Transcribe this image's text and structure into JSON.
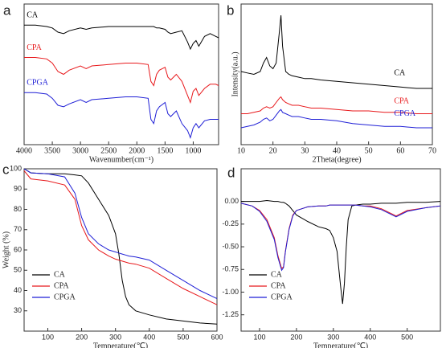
{
  "chart_data": [
    {
      "type": "line",
      "panel": "a",
      "xlabel": "Wavenumber(cm⁻¹)",
      "legend": "inline",
      "xlim": [
        4000,
        550
      ],
      "xticks": [
        4000,
        3500,
        3000,
        2500,
        2000,
        1500,
        1000
      ],
      "ylim": [
        0,
        100
      ],
      "x": [
        4000,
        3800,
        3600,
        3500,
        3400,
        3300,
        3200,
        3000,
        2900,
        2800,
        2500,
        2200,
        2000,
        1800,
        1750,
        1700,
        1650,
        1600,
        1500,
        1450,
        1400,
        1300,
        1200,
        1100,
        1050,
        1000,
        950,
        900,
        800,
        700,
        600,
        550
      ],
      "series": [
        {
          "name": "CA",
          "color": "#000000",
          "values": [
            85,
            85,
            84,
            83,
            80,
            79,
            81,
            83,
            82,
            83,
            84,
            84,
            84,
            84,
            84,
            84,
            83,
            83,
            82,
            80,
            79,
            80,
            81,
            73,
            68,
            72,
            74,
            70,
            77,
            79,
            77,
            76
          ]
        },
        {
          "name": "CPA",
          "color": "#e8191c",
          "values": [
            62,
            62,
            61,
            58,
            52,
            50,
            53,
            56,
            54,
            56,
            57,
            58,
            58,
            57,
            45,
            42,
            50,
            53,
            55,
            48,
            46,
            50,
            45,
            35,
            30,
            38,
            40,
            35,
            40,
            43,
            43,
            42
          ]
        },
        {
          "name": "CPGA",
          "color": "#1f1fd6",
          "values": [
            37,
            37,
            36,
            33,
            28,
            27,
            29,
            32,
            30,
            32,
            33,
            34,
            34,
            33,
            18,
            15,
            24,
            27,
            30,
            22,
            20,
            24,
            15,
            10,
            5,
            12,
            15,
            12,
            17,
            18,
            18,
            18
          ]
        }
      ]
    },
    {
      "type": "line",
      "panel": "b",
      "xlabel": "2Theta(degree)",
      "ylabel": "Intensity(a.u.)",
      "legend": "inline",
      "xlim": [
        10,
        70
      ],
      "xticks": [
        10,
        20,
        30,
        40,
        50,
        60,
        70
      ],
      "ylim": [
        0,
        100
      ],
      "x": [
        10,
        12,
        14,
        16,
        17,
        18,
        19,
        20,
        21,
        22,
        22.5,
        23,
        24,
        25,
        26,
        28,
        30,
        32,
        35,
        40,
        45,
        50,
        55,
        60,
        65,
        70
      ],
      "series": [
        {
          "name": "CA",
          "color": "#000000",
          "values": [
            52,
            51,
            50,
            52,
            58,
            62,
            56,
            54,
            58,
            80,
            92,
            70,
            52,
            50,
            49,
            48,
            47,
            47,
            46,
            45,
            44,
            43,
            42,
            41,
            40,
            40
          ]
        },
        {
          "name": "CPA",
          "color": "#e8191c",
          "values": [
            22,
            22,
            23,
            24,
            26,
            27,
            26,
            27,
            30,
            33,
            34,
            32,
            30,
            29,
            28,
            28,
            27,
            26,
            26,
            25,
            24,
            24,
            23,
            23,
            22,
            22
          ]
        },
        {
          "name": "CPGA",
          "color": "#1f1fd6",
          "values": [
            12,
            13,
            14,
            16,
            18,
            19,
            17,
            18,
            21,
            24,
            25,
            23,
            22,
            21,
            20,
            20,
            19,
            18,
            18,
            17,
            15,
            14,
            13,
            13,
            12,
            12
          ]
        }
      ]
    },
    {
      "type": "line",
      "panel": "c",
      "xlabel": "Temperature(℃)",
      "ylabel": "Weight (%)",
      "legend": "lower left",
      "xlim": [
        30,
        600
      ],
      "xticks": [
        100,
        200,
        300,
        400,
        500,
        600
      ],
      "ylim": [
        20,
        100
      ],
      "yticks": [
        30,
        40,
        50,
        60,
        70,
        80,
        90,
        100
      ],
      "x": [
        30,
        50,
        100,
        150,
        180,
        200,
        220,
        250,
        280,
        300,
        310,
        320,
        330,
        340,
        360,
        400,
        450,
        500,
        550,
        600
      ],
      "series": [
        {
          "name": "CA",
          "color": "#000000",
          "values": [
            100,
            98,
            97.5,
            97.5,
            97,
            96.5,
            93,
            85,
            77,
            68,
            58,
            45,
            37,
            33,
            30,
            28,
            26,
            25,
            24,
            23.5
          ]
        },
        {
          "name": "CPA",
          "color": "#e8191c",
          "values": [
            99,
            95,
            94,
            92,
            85,
            72,
            65,
            60,
            57,
            55.5,
            55,
            54.5,
            54,
            53.5,
            53,
            51,
            46,
            41,
            37,
            33
          ]
        },
        {
          "name": "CPGA",
          "color": "#1f1fd6",
          "values": [
            100,
            98,
            97.5,
            96,
            88,
            76,
            68,
            63,
            60,
            59,
            58.5,
            58,
            57.5,
            57,
            56.5,
            55,
            50,
            45,
            40,
            36
          ]
        }
      ]
    },
    {
      "type": "line",
      "panel": "d",
      "xlabel": "Temperature(℃)",
      "legend": "lower left",
      "xlim": [
        50,
        590
      ],
      "xticks": [
        100,
        200,
        300,
        400,
        500
      ],
      "ylim": [
        -1.43,
        0.36
      ],
      "yticks": [
        {
          "value": 0,
          "label": "0.00"
        },
        -0.25,
        {
          "value": -0.5,
          "label": "-0.50"
        },
        -0.75,
        {
          "value": -1,
          "label": "-1.00"
        },
        -1.25
      ],
      "x": [
        50,
        80,
        100,
        120,
        140,
        150,
        160,
        165,
        170,
        180,
        190,
        200,
        230,
        260,
        280,
        290,
        300,
        310,
        315,
        320,
        325,
        330,
        335,
        340,
        350,
        360,
        380,
        400,
        430,
        450,
        470,
        500,
        550,
        590
      ],
      "series": [
        {
          "name": "CA",
          "color": "#000000",
          "values": [
            0,
            0,
            0,
            0.01,
            0,
            0,
            -0.01,
            -0.01,
            -0.02,
            -0.05,
            -0.1,
            -0.15,
            -0.22,
            -0.28,
            -0.3,
            -0.32,
            -0.4,
            -0.55,
            -0.75,
            -0.95,
            -1.13,
            -0.9,
            -0.5,
            -0.2,
            -0.05,
            -0.04,
            -0.03,
            -0.03,
            -0.02,
            -0.02,
            -0.02,
            -0.01,
            -0.01,
            0
          ]
        },
        {
          "name": "CPA",
          "color": "#e8191c",
          "values": [
            -0.02,
            -0.05,
            -0.1,
            -0.2,
            -0.4,
            -0.6,
            -0.74,
            -0.72,
            -0.55,
            -0.3,
            -0.15,
            -0.1,
            -0.06,
            -0.05,
            -0.05,
            -0.04,
            -0.04,
            -0.04,
            -0.04,
            -0.04,
            -0.04,
            -0.04,
            -0.04,
            -0.04,
            -0.04,
            -0.04,
            -0.05,
            -0.05,
            -0.08,
            -0.12,
            -0.16,
            -0.1,
            -0.07,
            -0.05
          ]
        },
        {
          "name": "CPGA",
          "color": "#1f1fd6",
          "values": [
            -0.02,
            -0.05,
            -0.11,
            -0.22,
            -0.42,
            -0.62,
            -0.76,
            -0.73,
            -0.56,
            -0.31,
            -0.16,
            -0.1,
            -0.06,
            -0.05,
            -0.05,
            -0.04,
            -0.04,
            -0.04,
            -0.04,
            -0.04,
            -0.04,
            -0.04,
            -0.04,
            -0.04,
            -0.04,
            -0.04,
            -0.05,
            -0.06,
            -0.09,
            -0.13,
            -0.17,
            -0.11,
            -0.07,
            -0.05
          ]
        }
      ]
    }
  ]
}
